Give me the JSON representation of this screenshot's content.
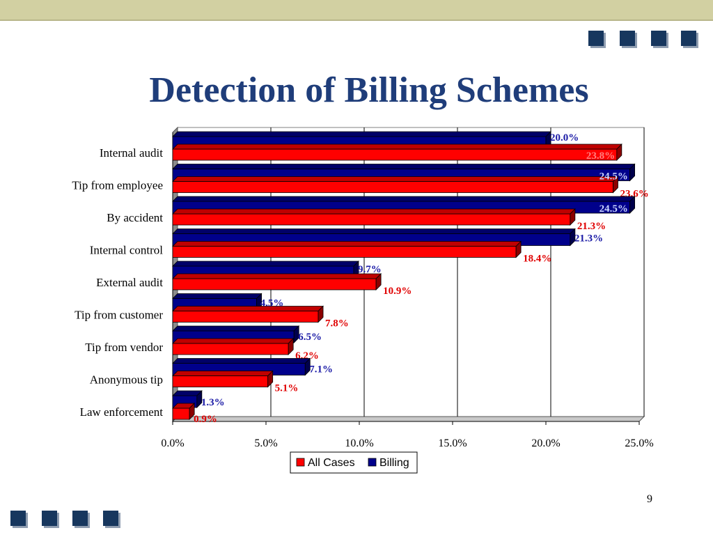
{
  "slide": {
    "title": "Detection of Billing Schemes",
    "page_number": "9"
  },
  "colors": {
    "all_cases": "#ff0000",
    "billing": "#00008b",
    "all_cases_label": "#e00000",
    "billing_label": "#1a1aa6",
    "title": "#1f3d7a",
    "decor": "#17375e"
  },
  "chart_data": {
    "type": "bar",
    "orientation": "horizontal",
    "categories": [
      "Internal audit",
      "Tip from employee",
      "By accident",
      "Internal control",
      "External audit",
      "Tip from customer",
      "Tip from vendor",
      "Anonymous tip",
      "Law enforcement"
    ],
    "series": [
      {
        "name": "All Cases",
        "values": [
          23.8,
          23.6,
          21.3,
          18.4,
          10.9,
          7.8,
          6.2,
          5.1,
          0.9
        ],
        "labels": [
          "23.8%",
          "23.6%",
          "21.3%",
          "18.4%",
          "10.9%",
          "7.8%",
          "6.2%",
          "5.1%",
          "0.9%"
        ]
      },
      {
        "name": "Billing",
        "values": [
          20.0,
          24.5,
          24.5,
          21.3,
          9.7,
          4.5,
          6.5,
          7.1,
          1.3
        ],
        "labels": [
          "20.0%",
          "24.5%",
          "24.5%",
          "21.3%",
          "9.7%",
          "4.5%",
          "6.5%",
          "7.1%",
          "1.3%"
        ]
      }
    ],
    "xlim": [
      0,
      25
    ],
    "x_ticks": [
      "0.0%",
      "5.0%",
      "10.0%",
      "15.0%",
      "20.0%",
      "25.0%"
    ],
    "grid": true,
    "legend_position": "bottom",
    "style": "3d"
  }
}
